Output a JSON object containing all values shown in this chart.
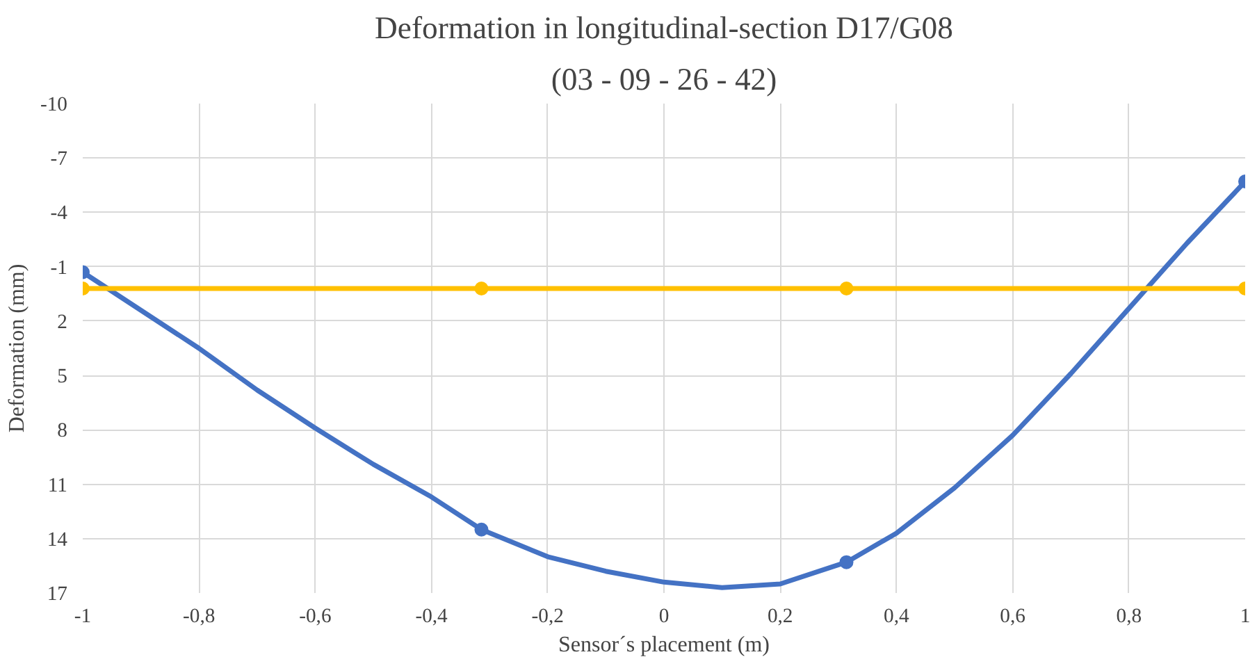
{
  "chart_data": {
    "type": "line",
    "title": "Deformation in longitudinal-section D17/G08",
    "subtitle": "(03 - 09 - 26 - 42)",
    "xlabel": "Sensor´s placement (m)",
    "ylabel": "Deformation (mm)",
    "x": [
      -1,
      -0.314,
      0.314,
      1
    ],
    "series": [
      {
        "color": "#4472c4",
        "marker": "none",
        "x": [
          -1,
          -0.9,
          -0.8,
          -0.7,
          -0.6,
          -0.5,
          -0.4,
          -0.314,
          -0.2,
          -0.1,
          0,
          0.1,
          0.2,
          0.314,
          0.4,
          0.5,
          0.6,
          0.7,
          0.8,
          0.9,
          1
        ],
        "values": [
          -0.7,
          1.4,
          3.5,
          5.8,
          7.9,
          9.9,
          11.7,
          13.5,
          15.0,
          15.8,
          16.4,
          16.7,
          16.5,
          15.3,
          13.7,
          11.2,
          8.3,
          4.9,
          1.3,
          -2.3,
          -5.7
        ]
      },
      {
        "type": "scatter",
        "color": "#4472c4",
        "values": [
          -0.7,
          13.5,
          15.3,
          -5.7
        ]
      },
      {
        "color": "#ffc000",
        "values": [
          0.2,
          0.2,
          0.2,
          0.2
        ]
      }
    ],
    "xlim": [
      -1,
      1
    ],
    "ylim": [
      17,
      -10
    ],
    "xticks": [
      -1,
      {
        "value": -0.8,
        "label": "-0,8"
      },
      {
        "value": -0.6,
        "label": "-0,6"
      },
      {
        "value": -0.4,
        "label": "-0,4"
      },
      {
        "value": -0.2,
        "label": "-0,2"
      },
      0,
      {
        "value": 0.2,
        "label": "0,2"
      },
      {
        "value": 0.4,
        "label": "0,4"
      },
      {
        "value": 0.6,
        "label": "0,6"
      },
      {
        "value": 0.8,
        "label": "0,8"
      },
      1
    ],
    "yticks": [
      -10,
      -7,
      -4,
      -1,
      2,
      5,
      8,
      11,
      14,
      17
    ],
    "grid": true,
    "marker": "circle",
    "line_style": "solid"
  }
}
